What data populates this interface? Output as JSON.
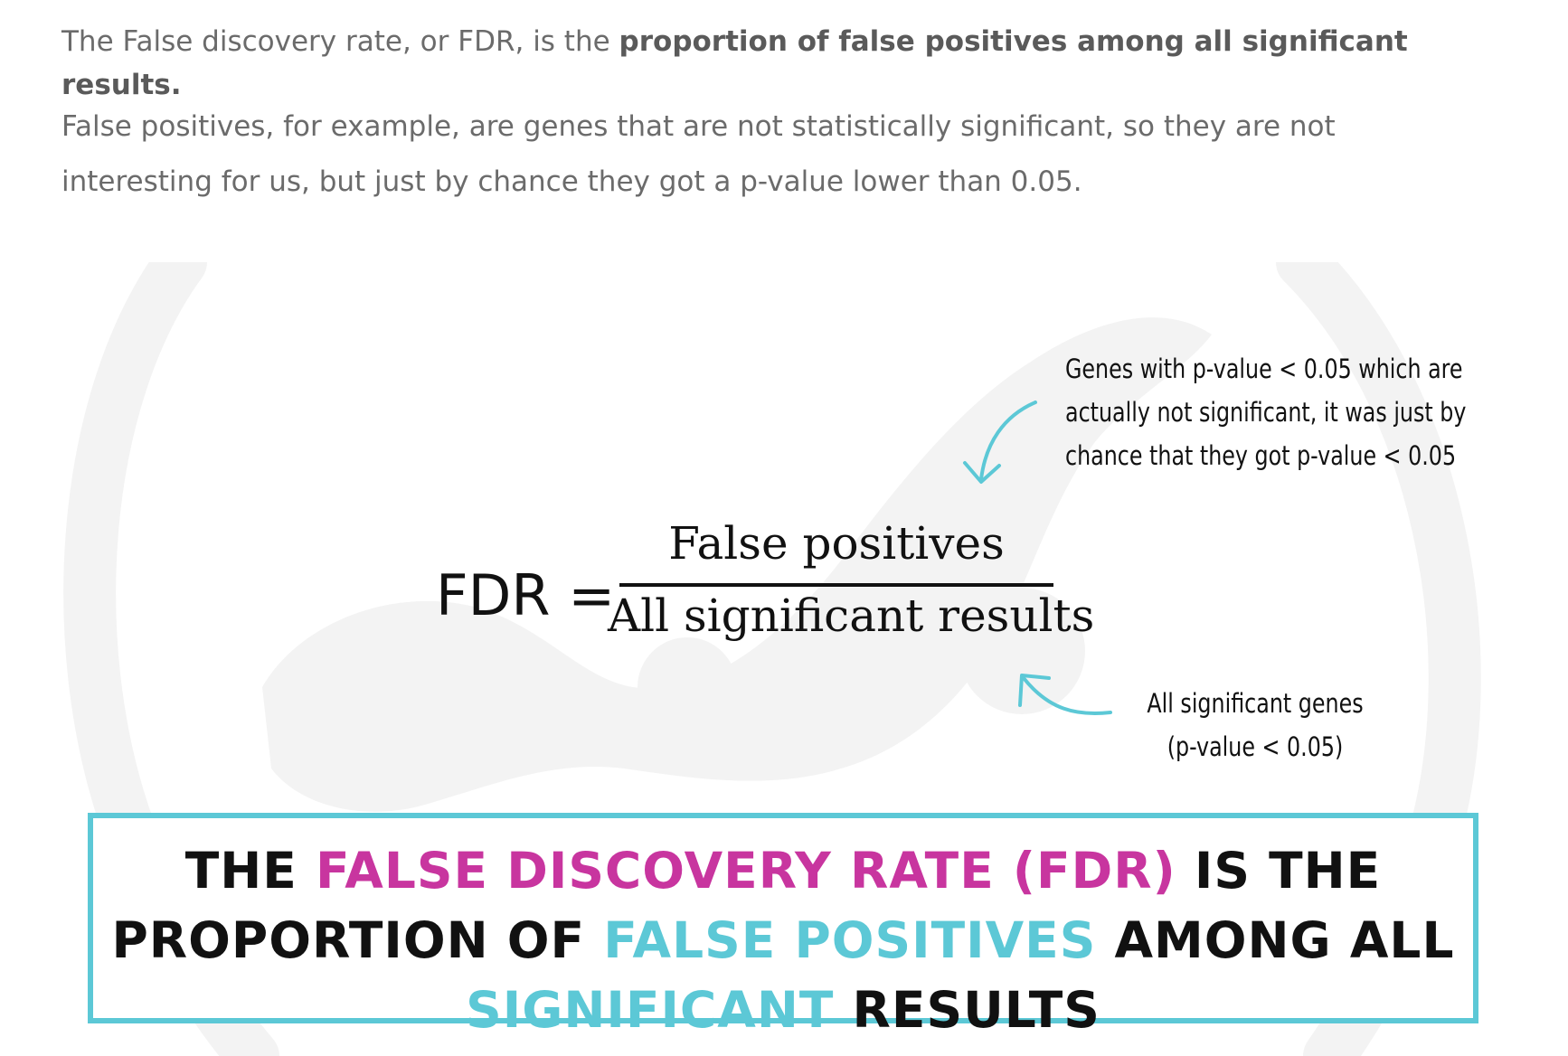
{
  "intro": {
    "p1_prefix": "The False discovery rate, or FDR, is the ",
    "p1_bold": "proportion of false positives among all significant results.",
    "p2": "False positives, for example, are genes that are not statistically significant, so they are not interesting for us, but just by chance they got a p-value lower than 0.05."
  },
  "equation": {
    "lhs": "FDR =",
    "numerator": "False positives",
    "denominator": "All significant results"
  },
  "annotations": {
    "numerator_note": [
      "Genes with p-value < 0.05 which are",
      "actually not significant, it was just by",
      "chance that they got p-value < 0.05"
    ],
    "denominator_note": [
      "All significant genes",
      "(p-value < 0.05)"
    ]
  },
  "summary": {
    "line1_a": "THE ",
    "line1_b": "FALSE DISCOVERY RATE (FDR)",
    "line1_c": " IS THE",
    "line2_a": "PROPORTION OF ",
    "line2_b": "FALSE POSITIVES",
    "line2_c": " AMONG ALL",
    "line3_a": "SIGNIFICANT",
    "line3_b": " RESULTS"
  },
  "colors": {
    "accent_pink": "#c8359f",
    "accent_teal": "#5cc8d6",
    "intro_text": "#6b6b6b",
    "watermark": "#f3f3f3"
  }
}
